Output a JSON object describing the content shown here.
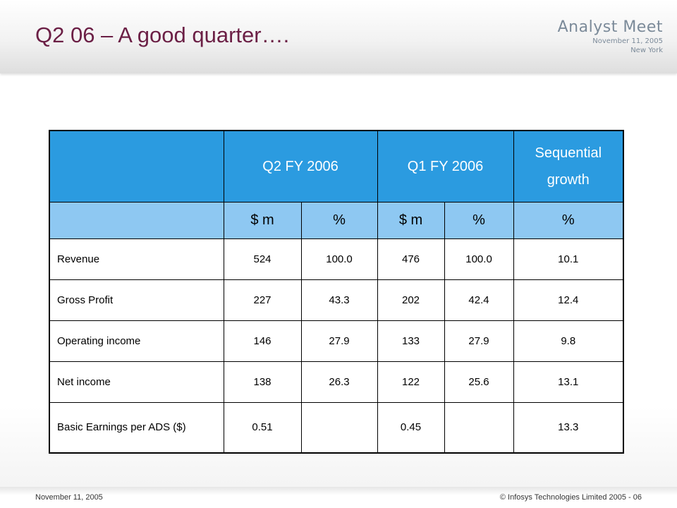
{
  "slide": {
    "title": "Q2 06 – A good quarter….",
    "brand": {
      "title": "Analyst Meet",
      "date": "November 11, 2005",
      "location": "New York"
    },
    "colors": {
      "title": "#6b1f45",
      "header_row": "#2b9be0",
      "unit_row": "#8ec8f2",
      "brand_text": "#7b8a99"
    }
  },
  "table": {
    "headers": {
      "blank": "",
      "q2": "Q2 FY 2006",
      "q1": "Q1 FY 2006",
      "growth": "Sequential growth"
    },
    "units": [
      "$ m",
      "%",
      "$ m",
      "%",
      "%"
    ],
    "rows": [
      {
        "label": "Revenue",
        "q2_value": "524",
        "q2_pct": "100.0",
        "q1_value": "476",
        "q1_pct": "100.0",
        "growth": "10.1"
      },
      {
        "label": "Gross Profit",
        "q2_value": "227",
        "q2_pct": "43.3",
        "q1_value": "202",
        "q1_pct": "42.4",
        "growth": "12.4"
      },
      {
        "label": "Operating income",
        "q2_value": "146",
        "q2_pct": "27.9",
        "q1_value": "133",
        "q1_pct": "27.9",
        "growth": "9.8"
      },
      {
        "label": "Net income",
        "q2_value": "138",
        "q2_pct": "26.3",
        "q1_value": "122",
        "q1_pct": "25.6",
        "growth": "13.1"
      },
      {
        "label": "Basic Earnings per ADS ($)",
        "q2_value": "0.51",
        "q2_pct": "",
        "q1_value": "0.45",
        "q1_pct": "",
        "growth": "13.3"
      }
    ]
  },
  "footer": {
    "date": "November 11, 2005",
    "copyright": "© Infosys Technologies Limited 2005 - 06"
  }
}
